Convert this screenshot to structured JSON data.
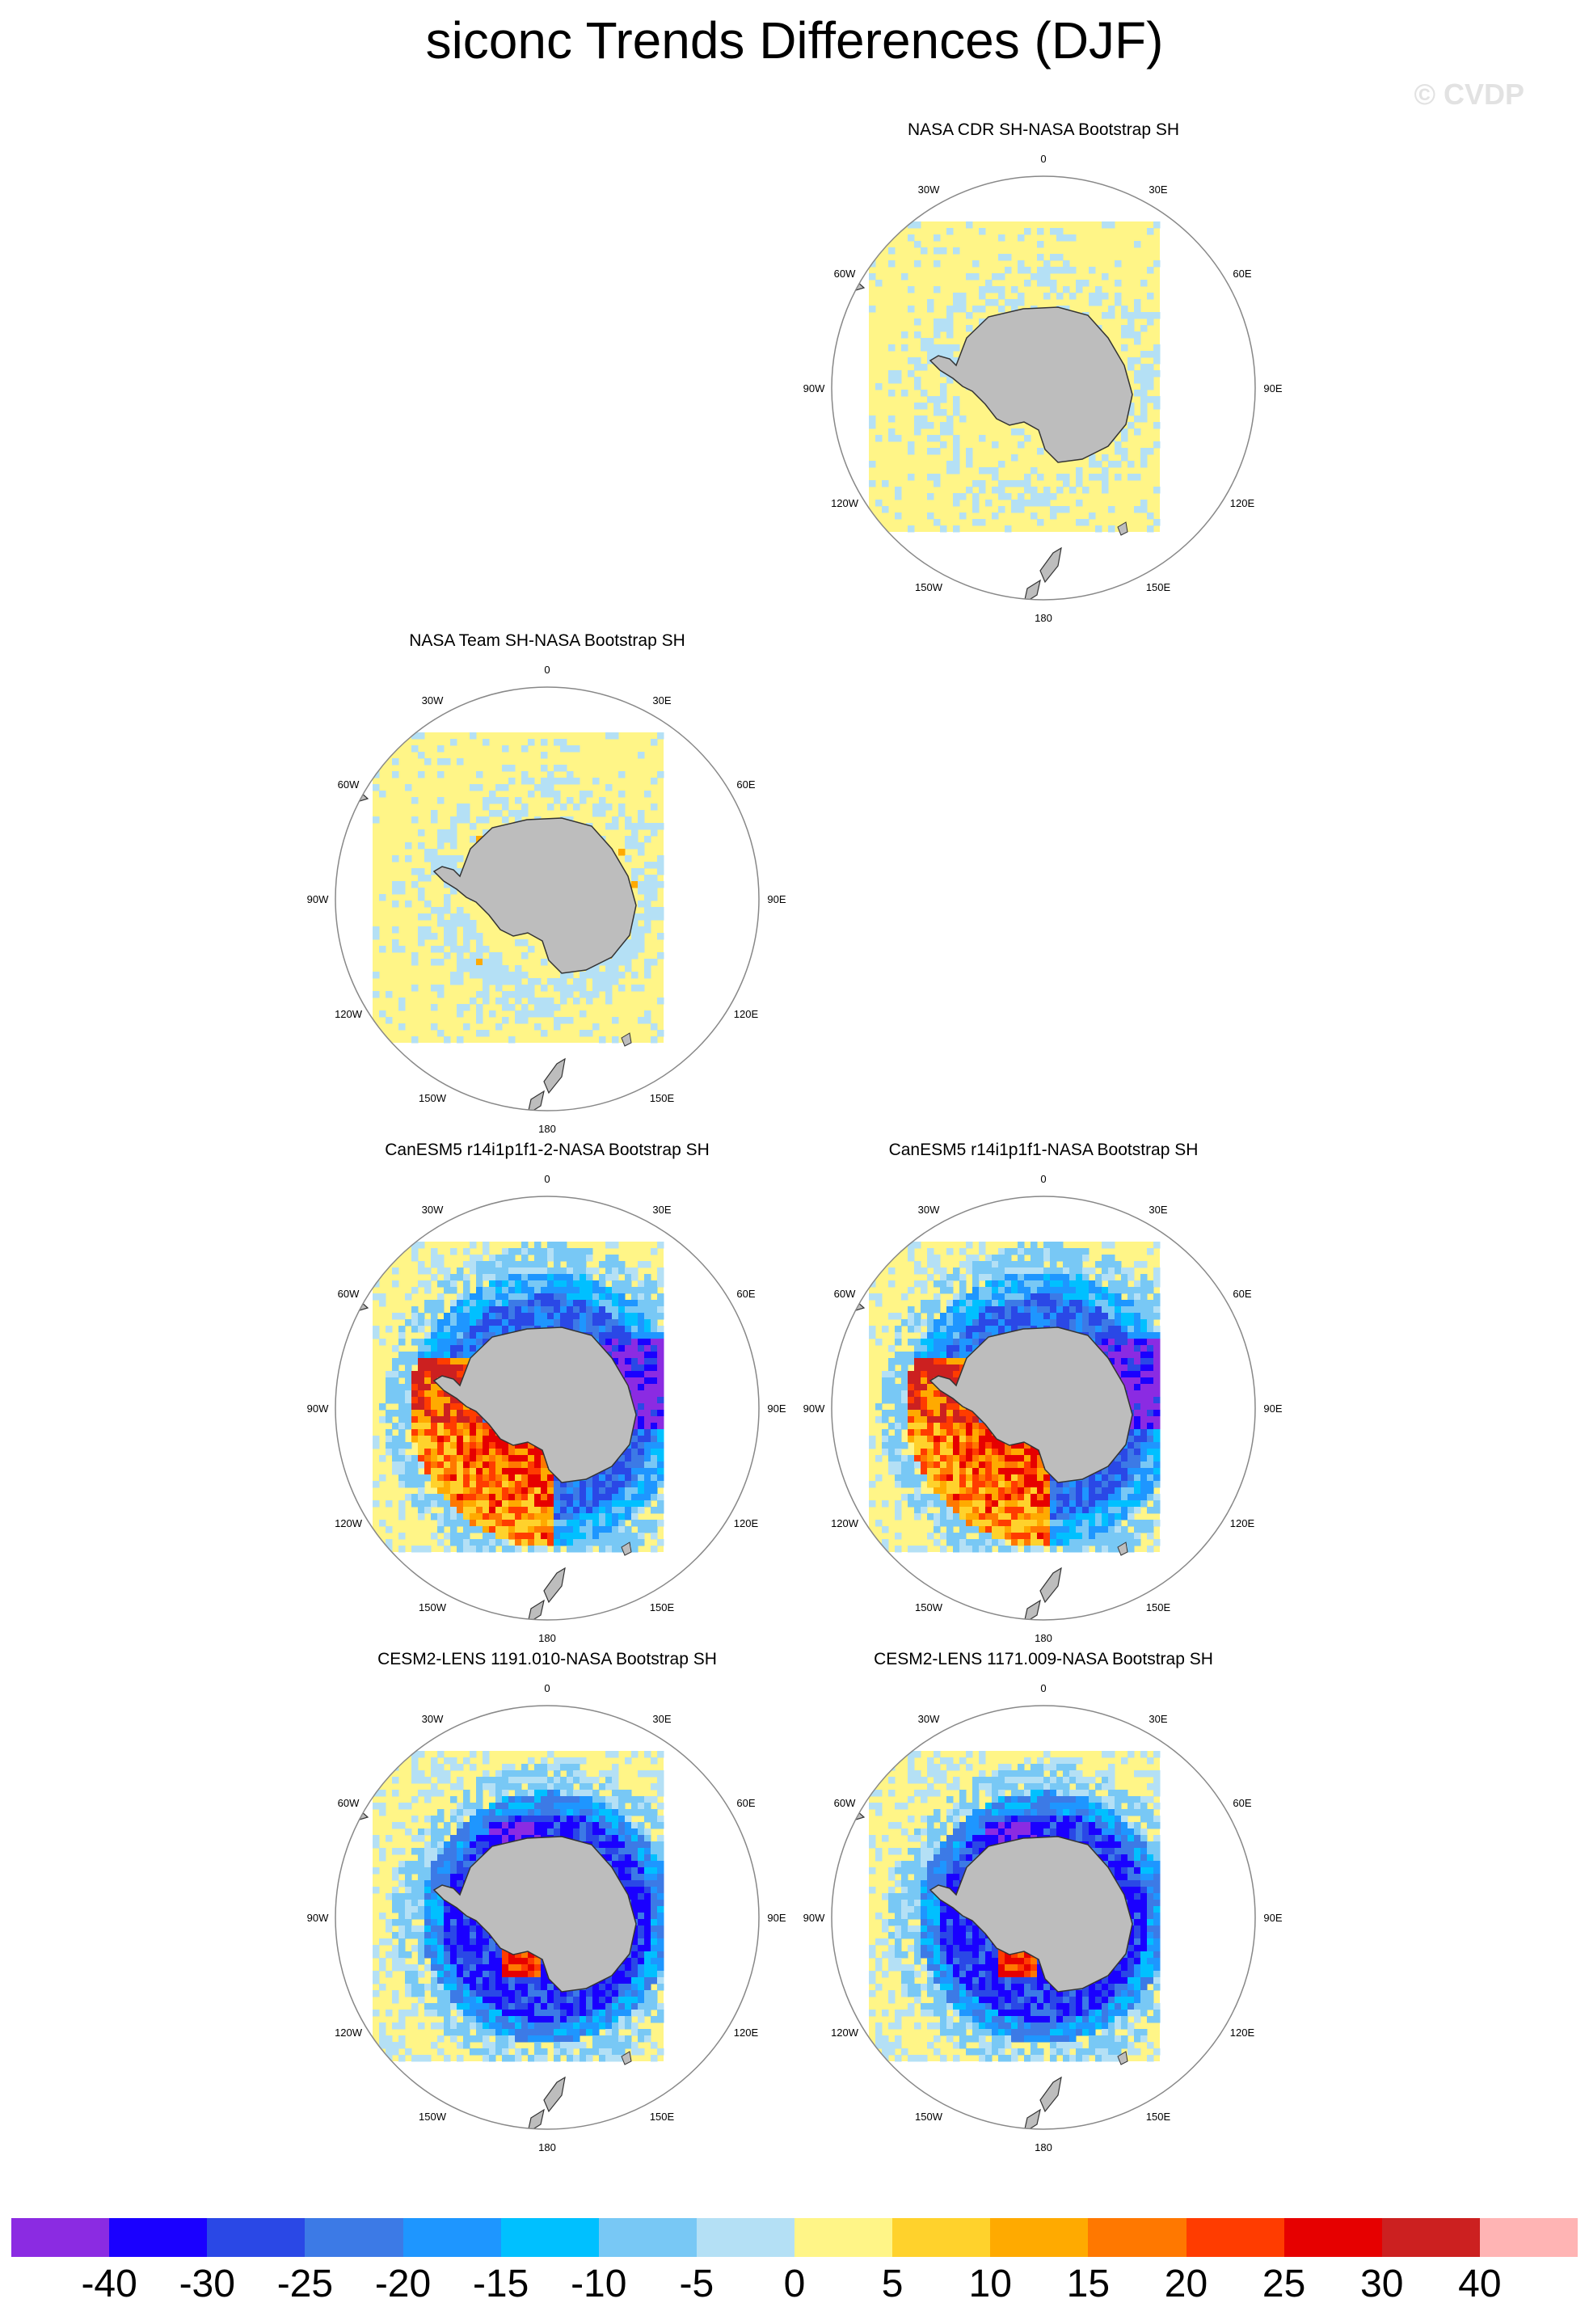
{
  "title": "siconc Trends Differences (DJF)",
  "watermark": "© CVDP",
  "panels": [
    {
      "title": "NASA CDR SH-NASA Bootstrap SH",
      "pattern": "cdr"
    },
    {
      "title": "NASA Team SH-NASA Bootstrap SH",
      "pattern": "team"
    },
    {
      "title": "CanESM5 r14i1p1f1-2-NASA Bootstrap SH",
      "pattern": "canesm"
    },
    {
      "title": "CanESM5 r14i1p1f1-NASA Bootstrap SH",
      "pattern": "canesm"
    },
    {
      "title": "CESM2-LENS 1191.010-NASA Bootstrap SH",
      "pattern": "cesm"
    },
    {
      "title": "CESM2-LENS 1171.009-NASA Bootstrap SH",
      "pattern": "cesm"
    }
  ],
  "map": {
    "projection": "south polar stereographic",
    "lon_labels": [
      "0",
      "30E",
      "60E",
      "90E",
      "120E",
      "150E",
      "180",
      "150W",
      "120W",
      "90W",
      "60W",
      "30W"
    ],
    "land_color": "#bdbdbd",
    "boundary_color": "#888888"
  },
  "colorbar": {
    "colors": [
      "#8b2be2",
      "#1a00ff",
      "#2a48e6",
      "#3c7ae6",
      "#1e96ff",
      "#00c0ff",
      "#78c8f5",
      "#b4e0f5",
      "#fff587",
      "#ffd22c",
      "#ffaa00",
      "#ff7800",
      "#ff3c00",
      "#e60000",
      "#cc2020",
      "#ffb4b4"
    ],
    "labels": [
      "-40",
      "-30",
      "-25",
      "-20",
      "-15",
      "-10",
      "-5",
      "0",
      "5",
      "10",
      "15",
      "20",
      "25",
      "30",
      "40"
    ]
  }
}
